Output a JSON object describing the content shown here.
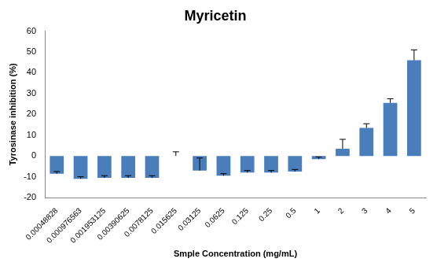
{
  "chart_data": {
    "type": "bar",
    "title": "Myricetin",
    "x_label": "Smple Concentration (mg/mL)",
    "y_label": "Tyrosinase inhibition (%)",
    "categories": [
      "0.00048828",
      "0.000976563",
      "0.001953125",
      "0.00390625",
      "0.0078125",
      "0.015625",
      "0.03125",
      "0.0625",
      "0.125",
      "0.25",
      "0.5",
      "1",
      "2",
      "3",
      "4",
      "5"
    ],
    "values": [
      -8.5,
      -11,
      -10.5,
      -10.5,
      -10.5,
      0,
      -7,
      -9.5,
      -8,
      -8,
      -7.5,
      -1.5,
      3.5,
      13.5,
      25.5,
      46
    ],
    "errors": [
      1,
      1,
      1,
      1,
      1,
      2,
      6,
      1,
      1,
      1,
      1,
      1,
      4.5,
      2,
      2,
      5
    ],
    "color": "#4a7ebb",
    "ylim": [
      -20,
      60
    ],
    "yticks": [
      -20,
      -10,
      0,
      10,
      20,
      30,
      40,
      50,
      60
    ],
    "grid": false
  }
}
